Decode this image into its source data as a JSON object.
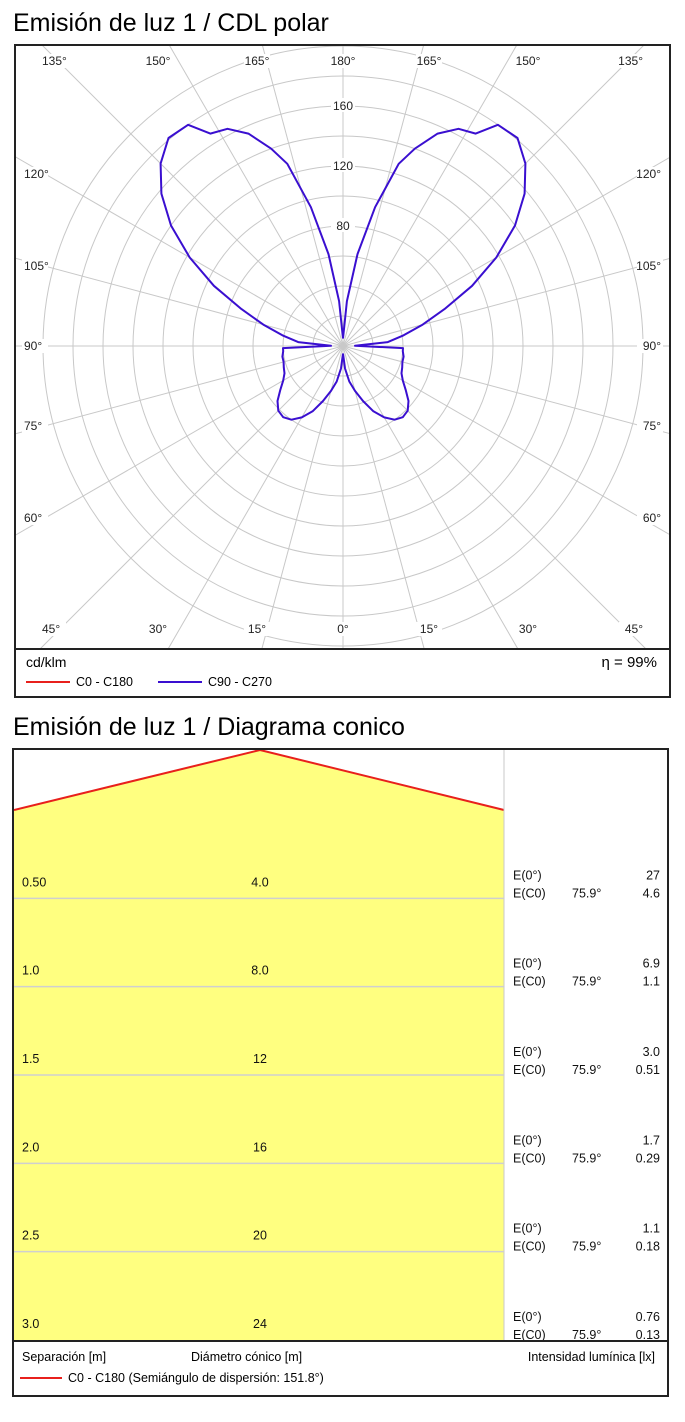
{
  "polar": {
    "title": "Emisión de luz 1 / CDL polar",
    "unit": "cd/klm",
    "efficiency": "η = 99%",
    "top_angle_labels": [
      "135°",
      "150°",
      "165°",
      "180°",
      "165°",
      "150°",
      "135°"
    ],
    "bottom_angle_labels": [
      "45°",
      "30°",
      "15°",
      "0°",
      "15°",
      "30°",
      "45°"
    ],
    "left_angle_labels": [
      "120°",
      "105°",
      "90°",
      "75°",
      "60°"
    ],
    "right_angle_labels": [
      "120°",
      "105°",
      "90°",
      "75°",
      "60°"
    ],
    "radial_tick_labels": [
      "80",
      "120",
      "160"
    ]
  },
  "cone": {
    "title": "Emisión de luz 1 / Diagrama conico",
    "col_separation": "Separación [m]",
    "col_diameter": "Diámetro cónico [m]",
    "col_illuminance": "Intensidad lumínica [lx]",
    "e0_label": "E(0°)",
    "ec0_label": "E(C0)",
    "rows": [
      {
        "separation": "0.50",
        "diameter": "4.0",
        "angle": "75.9°",
        "e0": "27",
        "ec0": "4.6"
      },
      {
        "separation": "1.0",
        "diameter": "8.0",
        "angle": "75.9°",
        "e0": "6.9",
        "ec0": "1.1"
      },
      {
        "separation": "1.5",
        "diameter": "12",
        "angle": "75.9°",
        "e0": "3.0",
        "ec0": "0.51"
      },
      {
        "separation": "2.0",
        "diameter": "16",
        "angle": "75.9°",
        "e0": "1.7",
        "ec0": "0.29"
      },
      {
        "separation": "2.5",
        "diameter": "20",
        "angle": "75.9°",
        "e0": "1.1",
        "ec0": "0.18"
      },
      {
        "separation": "3.0",
        "diameter": "24",
        "angle": "75.9°",
        "e0": "0.76",
        "ec0": "0.13"
      }
    ]
  },
  "colors": {
    "c0_c180": "#e8201c",
    "c90_c270": "#3a0fd0",
    "cone_fill": "#ffff80",
    "grid": "#c8c8c8"
  },
  "chart_data": [
    {
      "type": "line",
      "title": "Emisión de luz 1 / CDL polar",
      "polar": true,
      "unit": "cd/klm",
      "r_ticks": [
        40,
        80,
        120,
        160
      ],
      "r_max": 190,
      "angle_ticks_deg": [
        0,
        15,
        30,
        45,
        60,
        75,
        90,
        105,
        120,
        135,
        150,
        165,
        180
      ],
      "series": [
        {
          "name": "C0 - C180",
          "points": []
        },
        {
          "name": "C90 - C270",
          "points": [
            {
              "gamma": 0,
              "cd": 5
            },
            {
              "gamma": 5,
              "cd": 15
            },
            {
              "gamma": 10,
              "cd": 24
            },
            {
              "gamma": 15,
              "cd": 31
            },
            {
              "gamma": 20,
              "cd": 39
            },
            {
              "gamma": 25,
              "cd": 48
            },
            {
              "gamma": 30,
              "cd": 55
            },
            {
              "gamma": 35,
              "cd": 60
            },
            {
              "gamma": 40,
              "cd": 62
            },
            {
              "gamma": 45,
              "cd": 61
            },
            {
              "gamma": 50,
              "cd": 57
            },
            {
              "gamma": 55,
              "cd": 51
            },
            {
              "gamma": 60,
              "cd": 46
            },
            {
              "gamma": 65,
              "cd": 43
            },
            {
              "gamma": 70,
              "cd": 42
            },
            {
              "gamma": 75,
              "cd": 41
            },
            {
              "gamma": 80,
              "cd": 41
            },
            {
              "gamma": 85,
              "cd": 40
            },
            {
              "gamma": 88,
              "cd": 40
            },
            {
              "gamma": 91,
              "cd": 8
            },
            {
              "gamma": 95,
              "cd": 30
            },
            {
              "gamma": 100,
              "cd": 41
            },
            {
              "gamma": 105,
              "cd": 55
            },
            {
              "gamma": 110,
              "cd": 72
            },
            {
              "gamma": 115,
              "cd": 95
            },
            {
              "gamma": 120,
              "cd": 118
            },
            {
              "gamma": 125,
              "cd": 140
            },
            {
              "gamma": 130,
              "cd": 158
            },
            {
              "gamma": 135,
              "cd": 172
            },
            {
              "gamma": 140,
              "cd": 181
            },
            {
              "gamma": 145,
              "cd": 180
            },
            {
              "gamma": 148,
              "cd": 167
            },
            {
              "gamma": 152,
              "cd": 164
            },
            {
              "gamma": 156,
              "cd": 155
            },
            {
              "gamma": 160,
              "cd": 140
            },
            {
              "gamma": 163,
              "cd": 127
            },
            {
              "gamma": 167,
              "cd": 95
            },
            {
              "gamma": 171,
              "cd": 62
            },
            {
              "gamma": 175,
              "cd": 30
            },
            {
              "gamma": 180,
              "cd": 5
            }
          ]
        }
      ]
    },
    {
      "type": "area",
      "title": "Emisión de luz 1 / Diagrama conico",
      "half_spread_angle_deg": 151.8,
      "xlabel": "Diámetro cónico [m]",
      "ylabel": "Separación [m]",
      "separation_m": [
        0.5,
        1.0,
        1.5,
        2.0,
        2.5,
        3.0
      ],
      "diameter_m": [
        4.0,
        8.0,
        12,
        16,
        20,
        24
      ],
      "series": [
        {
          "name": "E(0°)",
          "values": [
            27,
            6.9,
            3.0,
            1.7,
            1.1,
            0.76
          ]
        },
        {
          "name": "E(C0)",
          "values": [
            4.6,
            1.1,
            0.51,
            0.29,
            0.18,
            0.13
          ]
        }
      ]
    }
  ],
  "legend": {
    "polar_series": [
      "C0 - C180",
      "C90 - C270"
    ],
    "cone_series": "C0 - C180 (Semiángulo de dispersión: 151.8°)"
  }
}
